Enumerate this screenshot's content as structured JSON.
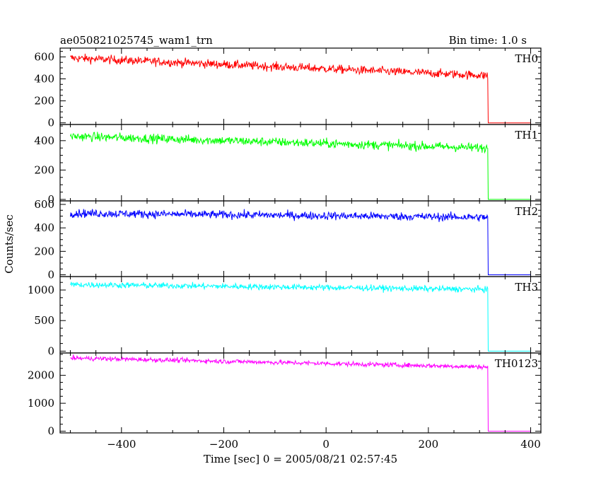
{
  "chart_data": {
    "type": "line",
    "title_left": "ae050821025745_wam1_trn",
    "title_right": "Bin time: 1.0 s",
    "xlabel": "Time [sec] 0 = 2005/08/21 02:57:45",
    "ylabel": "Counts/sec",
    "xlim": [
      -520,
      420
    ],
    "xticks": [
      -400,
      -200,
      0,
      200,
      400
    ],
    "x_start": -500,
    "x_drop": 316,
    "x_end": 400,
    "grid": false,
    "panels": [
      {
        "name": "TH0",
        "color": "#ff0000",
        "ylim": [
          -15,
          680
        ],
        "yticks": [
          0,
          200,
          400,
          600
        ],
        "level_start": 590,
        "level_end": 430,
        "noise": 28
      },
      {
        "name": "TH1",
        "color": "#00ff00",
        "ylim": [
          -10,
          510
        ],
        "yticks": [
          0,
          200,
          400
        ],
        "level_start": 430,
        "level_end": 350,
        "noise": 22
      },
      {
        "name": "TH2",
        "color": "#0000ff",
        "ylim": [
          -15,
          630
        ],
        "yticks": [
          0,
          200,
          400,
          600
        ],
        "level_start": 525,
        "level_end": 490,
        "noise": 25
      },
      {
        "name": "TH3",
        "color": "#00ffff",
        "ylim": [
          -30,
          1220
        ],
        "yticks": [
          0,
          500,
          1000
        ],
        "level_start": 1090,
        "level_end": 1010,
        "noise": 35
      },
      {
        "name": "TH0123",
        "color": "#ff00ff",
        "ylim": [
          -60,
          2800
        ],
        "yticks": [
          0,
          1000,
          2000
        ],
        "level_start": 2620,
        "level_end": 2300,
        "noise": 60
      }
    ]
  }
}
